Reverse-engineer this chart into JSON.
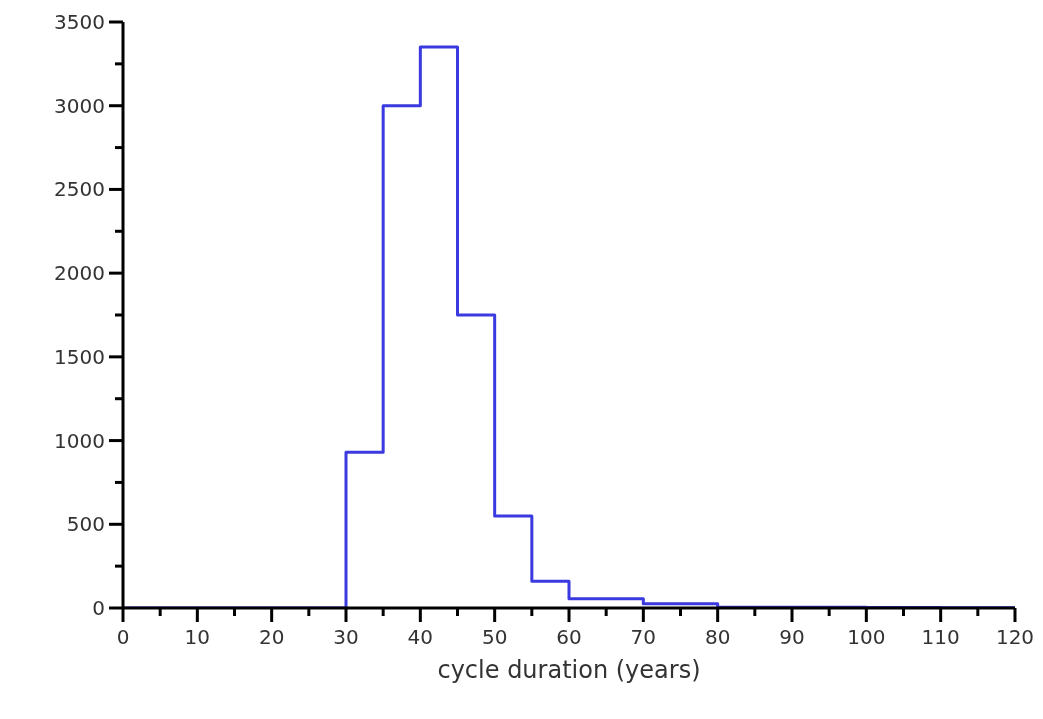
{
  "chart_data": {
    "type": "histogram",
    "xlabel": "cycle duration (years)",
    "bins": [
      0,
      5,
      10,
      15,
      20,
      25,
      30,
      35,
      40,
      45,
      50,
      55,
      60,
      70,
      80,
      90,
      100,
      110,
      120
    ],
    "values": [
      0,
      0,
      0,
      0,
      0,
      0,
      930,
      3000,
      3350,
      1750,
      550,
      160,
      55,
      25,
      5,
      5,
      3,
      2
    ],
    "color": "#3a3ae0",
    "xlim": [
      0,
      120
    ],
    "xticks": [
      0,
      {
        "value": 5,
        "label": null
      },
      10,
      {
        "value": 15,
        "label": null
      },
      20,
      {
        "value": 25,
        "label": null
      },
      30,
      {
        "value": 35,
        "label": null
      },
      40,
      {
        "value": 45,
        "label": null
      },
      50,
      {
        "value": 55,
        "label": null
      },
      60,
      {
        "value": 65,
        "label": null
      },
      70,
      {
        "value": 75,
        "label": null
      },
      80,
      {
        "value": 85,
        "label": null
      },
      90,
      {
        "value": 95,
        "label": null
      },
      100,
      {
        "value": 105,
        "label": null
      },
      110,
      {
        "value": 115,
        "label": null
      },
      120
    ],
    "ylim": [
      0,
      3500
    ],
    "yticks": [
      0,
      {
        "value": 250,
        "label": null
      },
      500,
      {
        "value": 750,
        "label": null
      },
      1000,
      {
        "value": 1250,
        "label": null
      },
      1500,
      {
        "value": 1750,
        "label": null
      },
      2000,
      {
        "value": 2250,
        "label": null
      },
      2500,
      {
        "value": 2750,
        "label": null
      },
      3000,
      {
        "value": 3250,
        "label": null
      },
      3500
    ],
    "grid": false
  }
}
